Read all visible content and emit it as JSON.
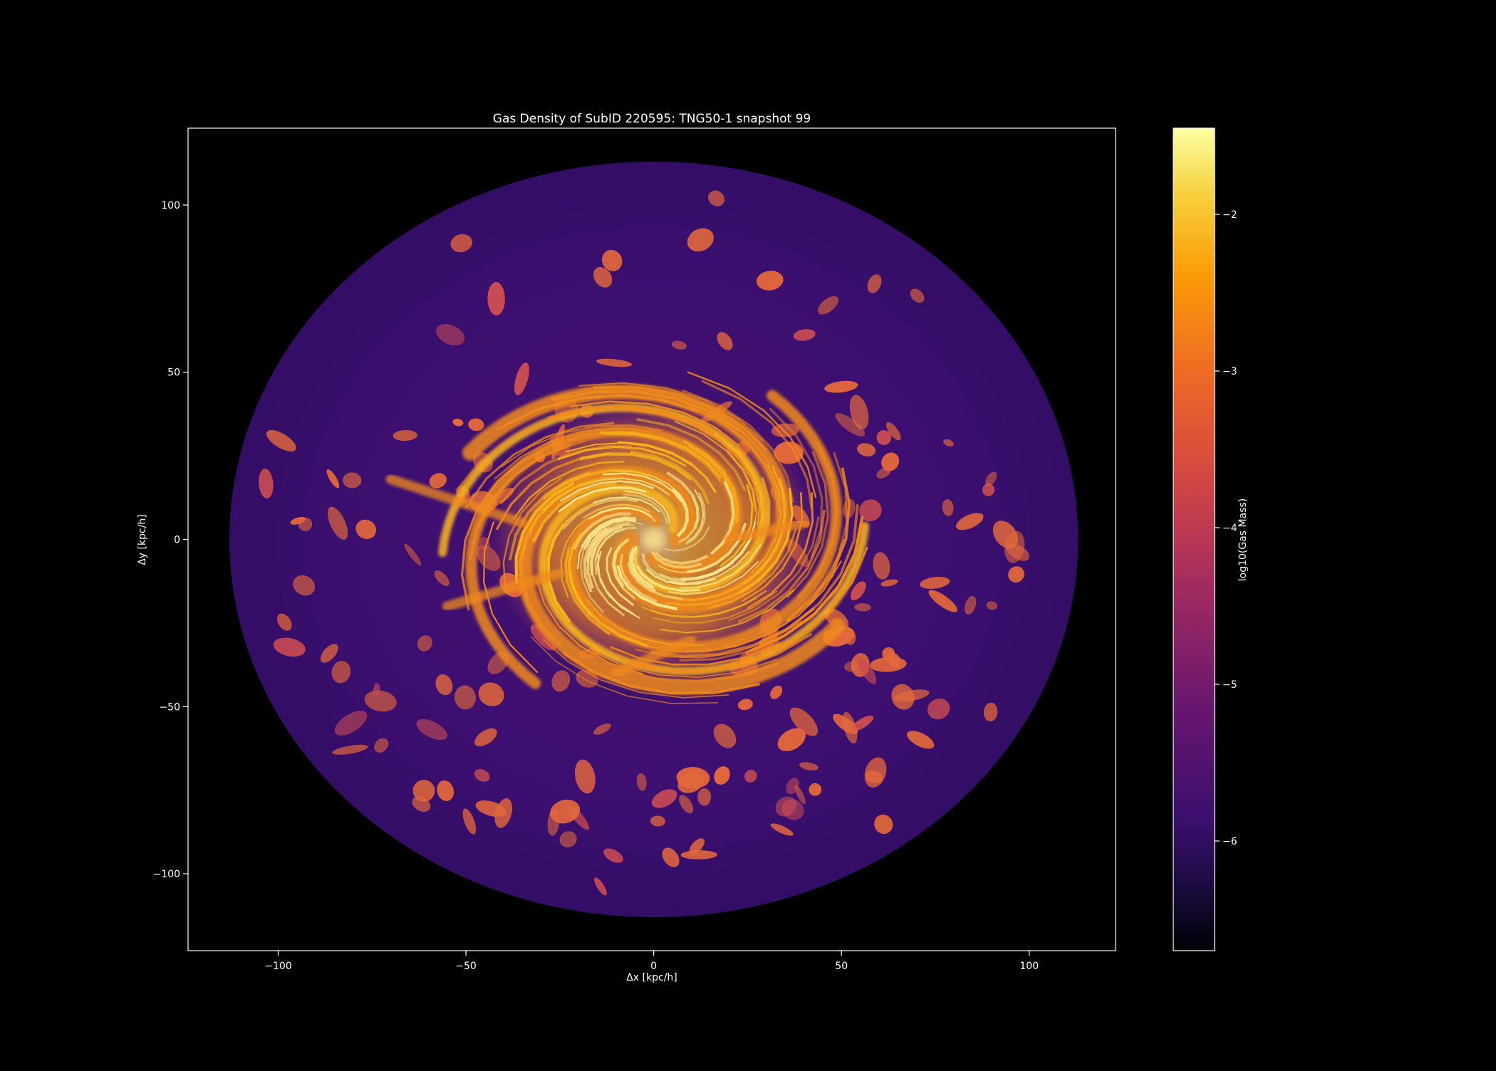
{
  "chart_data": {
    "type": "heatmap",
    "title": "Gas Density of SubID 220595: TNG50-1 snapshot 99",
    "xlabel": "Δx [kpc/h]",
    "ylabel": "Δy [kpc/h]",
    "xlim": [
      -124,
      123
    ],
    "ylim": [
      -123,
      123
    ],
    "xticks": [
      -100,
      -50,
      0,
      50,
      100
    ],
    "xtick_labels": [
      "−100",
      "−50",
      "0",
      "50",
      "100"
    ],
    "yticks": [
      100,
      50,
      0,
      -50,
      -100
    ],
    "ytick_labels": [
      "100",
      "50",
      "0",
      "−50",
      "−100"
    ],
    "colormap": "inferno",
    "colorbar": {
      "label": "log10(Gas Mass)",
      "vmin": -6.7,
      "vmax": -1.45,
      "ticks": [
        -2,
        -3,
        -4,
        -5,
        -6
      ],
      "tick_labels": [
        "−2",
        "−3",
        "−4",
        "−5",
        "−6"
      ]
    },
    "field": {
      "halo_radius_kpc_h": 113,
      "halo_log_mass": -5.55,
      "disk_center": [
        0,
        0
      ],
      "disk_log_mass": -2.3
    },
    "grid": false,
    "background": "#000000",
    "colors": {
      "halo": "#3b0f6f",
      "halo_edge": "#2a0b57",
      "clump": "#e3683b",
      "disk_outer": "#f08a1c",
      "disk_inner": "#fbb61a",
      "disk_core": "#fce58b"
    }
  }
}
